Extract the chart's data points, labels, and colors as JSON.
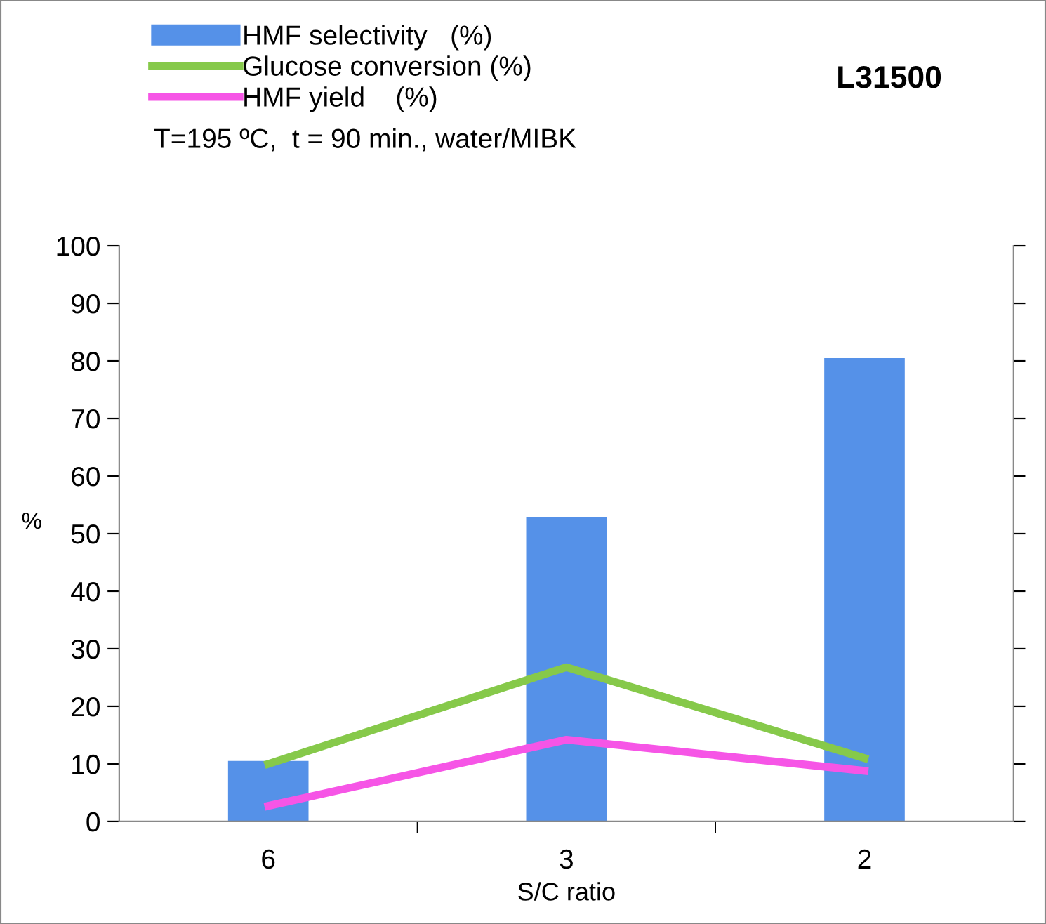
{
  "chart_data": {
    "type": "bar",
    "title": "L31500",
    "subtitle": "T=195 ºC,  t = 90 min., water/MIBK",
    "xlabel": "S/C ratio",
    "ylabel": "%",
    "categories": [
      "6",
      "3",
      "2"
    ],
    "series": [
      {
        "name": "HMF selectivity   (%)",
        "color": "#5591e8",
        "values": [
          10.5,
          52.8,
          80.5
        ]
      },
      {
        "name": "Glucose conversion (%)",
        "type": "line",
        "color": "#86c94a",
        "values": [
          10,
          26.8,
          11
        ]
      },
      {
        "name": "HMF yield    (%)",
        "type": "line",
        "color": "#f655e6",
        "values": [
          2.7,
          14.2,
          8.8
        ]
      }
    ],
    "ylim": [
      0,
      100
    ],
    "yticks": [
      0,
      10,
      20,
      30,
      40,
      50,
      60,
      70,
      80,
      90,
      100
    ],
    "grid": false,
    "legend": "top left",
    "marker": "none",
    "line_style": "solid"
  }
}
